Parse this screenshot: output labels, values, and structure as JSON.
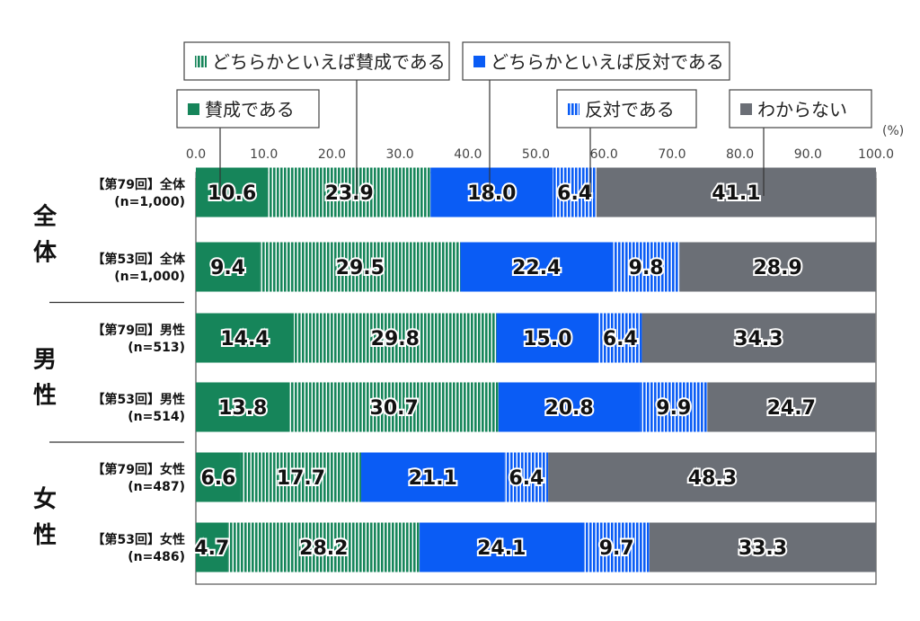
{
  "chart_data": {
    "type": "bar",
    "orientation": "horizontal",
    "stacked": true,
    "unit_label": "(%)",
    "xlim": [
      0,
      100
    ],
    "x_ticks": [
      "0.0",
      "10.0",
      "20.0",
      "30.0",
      "40.0",
      "50.0",
      "60.0",
      "70.0",
      "80.0",
      "90.0",
      "100.0"
    ],
    "groups": [
      {
        "label": "全体",
        "rows": [
          0,
          1
        ]
      },
      {
        "label": "男性",
        "rows": [
          2,
          3
        ]
      },
      {
        "label": "女性",
        "rows": [
          4,
          5
        ]
      }
    ],
    "categories": [
      {
        "line1": "【第79回】全体",
        "line2": "(n=1,000)"
      },
      {
        "line1": "【第53回】全体",
        "line2": "(n=1,000)"
      },
      {
        "line1": "【第79回】男性",
        "line2": "(n=513)"
      },
      {
        "line1": "【第53回】男性",
        "line2": "(n=514)"
      },
      {
        "line1": "【第79回】女性",
        "line2": "(n=487)"
      },
      {
        "line1": "【第53回】女性",
        "line2": "(n=486)"
      }
    ],
    "series": [
      {
        "name": "賛成である",
        "color": "#16855a",
        "pattern": "solid",
        "values": [
          10.6,
          9.4,
          14.4,
          13.8,
          6.6,
          4.7
        ]
      },
      {
        "name": "どちらかといえば賛成である",
        "color": "#16855a",
        "pattern": "vertical-stripes",
        "values": [
          23.9,
          29.5,
          29.8,
          30.7,
          17.7,
          28.2
        ]
      },
      {
        "name": "どちらかといえば反対である",
        "color": "#0a5cf5",
        "pattern": "solid",
        "values": [
          18.0,
          22.4,
          15.0,
          20.8,
          21.1,
          24.1
        ]
      },
      {
        "name": "反対である",
        "color": "#0a5cf5",
        "pattern": "vertical-stripes",
        "values": [
          6.4,
          9.8,
          6.4,
          9.9,
          6.4,
          9.7
        ]
      },
      {
        "name": "わからない",
        "color": "#6b6f76",
        "pattern": "solid",
        "values": [
          41.1,
          28.9,
          34.3,
          24.7,
          48.3,
          33.3
        ]
      }
    ],
    "legend": "callouts-top"
  }
}
